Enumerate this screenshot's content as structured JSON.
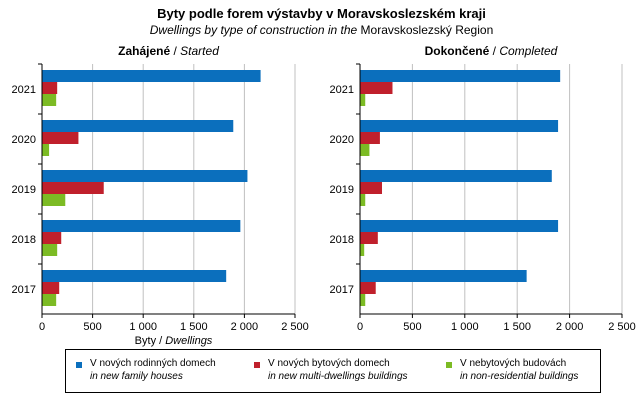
{
  "title": "Byty  podle forem výstavby  v Moravskoslezském  kraji",
  "subtitle_italic": "Dwellings  by type of construction  in the ",
  "subtitle_plain": "Moravskoslezský Region",
  "colors": {
    "family": "#0b6fbd",
    "multi": "#c0202c",
    "nonres": "#7cbb24",
    "grid": "#c0c0c0"
  },
  "legend": [
    {
      "cz": "V nových rodinných domech",
      "en": "in new family houses",
      "color": "#0b6fbd"
    },
    {
      "cz": "V nových bytových domech",
      "en": "in new multi-dwellings buildings",
      "color": "#c0202c"
    },
    {
      "cz": "V nebytových budovách",
      "en": "in non-residential buildings",
      "color": "#7cbb24"
    }
  ],
  "chart_data": [
    {
      "type": "bar",
      "orientation": "horizontal",
      "title_bold": "Zahájené",
      "title_italic": "Started",
      "categories": [
        "2021",
        "2020",
        "2019",
        "2018",
        "2017"
      ],
      "series": [
        {
          "name": "V nových rodinných domech / in new family houses",
          "values": [
            2160,
            1890,
            2030,
            1960,
            1820
          ]
        },
        {
          "name": "V nových bytových domech / in new multi-dwellings buildings",
          "values": [
            150,
            360,
            610,
            190,
            170
          ]
        },
        {
          "name": "V nebytových budovách / in non-residential buildings",
          "values": [
            140,
            70,
            230,
            150,
            140
          ]
        }
      ],
      "xlim": [
        0,
        2500
      ],
      "xticks": [
        "0",
        "500",
        "1 000",
        "1 500",
        "2 000",
        "2 500"
      ],
      "xlabel_plain": "Byty",
      "xlabel_italic": "Dwellings",
      "grid": true
    },
    {
      "type": "bar",
      "orientation": "horizontal",
      "title_bold": "Dokončené",
      "title_italic": "Completed",
      "categories": [
        "2021",
        "2020",
        "2019",
        "2018",
        "2017"
      ],
      "series": [
        {
          "name": "V nových rodinných domech / in new family houses",
          "values": [
            1910,
            1890,
            1830,
            1890,
            1590
          ]
        },
        {
          "name": "V nových bytových domech / in new multi-dwellings buildings",
          "values": [
            310,
            190,
            210,
            170,
            150
          ]
        },
        {
          "name": "V nebytových budovách / in non-residential buildings",
          "values": [
            50,
            90,
            50,
            40,
            50
          ]
        }
      ],
      "xlim": [
        0,
        2500
      ],
      "xticks": [
        "0",
        "500",
        "1 000",
        "1 500",
        "2 000",
        "2 500"
      ],
      "grid": true
    }
  ]
}
